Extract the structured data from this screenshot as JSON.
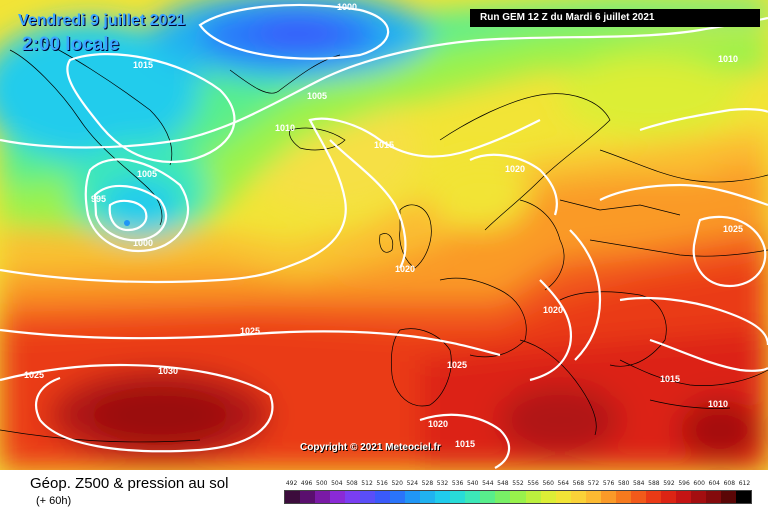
{
  "header": {
    "valid_date": "Vendredi 9 juillet 2021",
    "valid_time": "2:00 locale",
    "run_info": "Run GEM 12 Z du Mardi 6 juillet 2021"
  },
  "copyright": "Copyright © 2021 Meteociel.fr",
  "footer": {
    "title": "Géop. Z500 & pression au sol",
    "subtitle": "(+ 60h)"
  },
  "legend": {
    "values": [
      "492",
      "496",
      "500",
      "504",
      "508",
      "512",
      "516",
      "520",
      "524",
      "528",
      "532",
      "536",
      "540",
      "544",
      "548",
      "552",
      "556",
      "560",
      "564",
      "568",
      "572",
      "576",
      "580",
      "584",
      "588",
      "592",
      "596",
      "600",
      "604",
      "608",
      "612"
    ],
    "colors": [
      "#3c0c3c",
      "#5a0f6e",
      "#7a1aa6",
      "#8a2ad6",
      "#7a3ef2",
      "#5a4ef8",
      "#3a5afa",
      "#2a74fa",
      "#2096f6",
      "#20b2f0",
      "#20ccec",
      "#28dcd8",
      "#3ce8b8",
      "#58ee8c",
      "#78f066",
      "#98f24c",
      "#bcf03e",
      "#dcee36",
      "#f2e436",
      "#fad238",
      "#fcba32",
      "#fa9a28",
      "#f67a1e",
      "#f25a1a",
      "#ea3a16",
      "#dc2414",
      "#c41414",
      "#a40e10",
      "#840a0c",
      "#5a0606",
      "#000000"
    ]
  },
  "isobars": [
    {
      "label": "1000"
    },
    {
      "label": "1015"
    },
    {
      "label": "1005"
    },
    {
      "label": "1010"
    },
    {
      "label": "1015"
    },
    {
      "label": "1020"
    },
    {
      "label": "1005"
    },
    {
      "label": "995"
    },
    {
      "label": "1000"
    },
    {
      "label": "1020"
    },
    {
      "label": "1025"
    },
    {
      "label": "1025"
    },
    {
      "label": "1020"
    },
    {
      "label": "1025"
    },
    {
      "label": "1030"
    },
    {
      "label": "1025"
    },
    {
      "label": "1015"
    },
    {
      "label": "1010"
    },
    {
      "label": "1020"
    },
    {
      "label": "1015"
    },
    {
      "label": "1010"
    }
  ]
}
